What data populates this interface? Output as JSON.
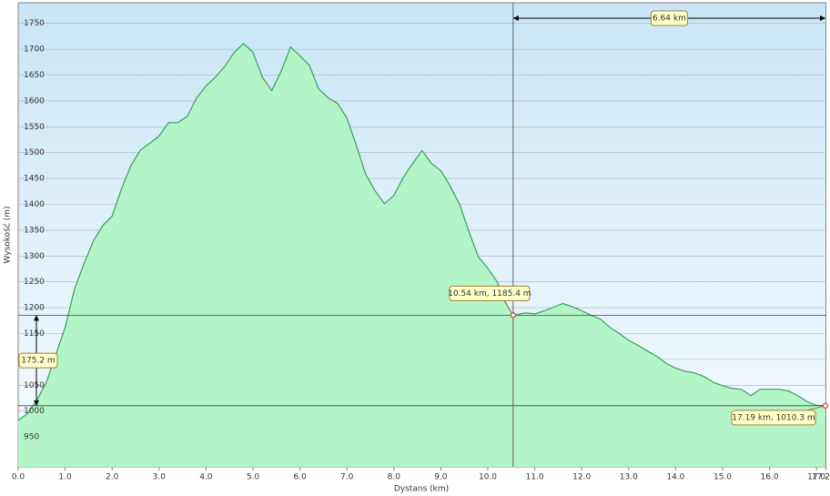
{
  "chart_data": {
    "type": "area",
    "x_label": "Dystans  (km)",
    "y_label": "Wysokość (m)",
    "x": [
      0.0,
      0.2,
      0.4,
      0.6,
      0.8,
      1.0,
      1.2,
      1.4,
      1.6,
      1.8,
      2.0,
      2.2,
      2.4,
      2.6,
      2.8,
      3.0,
      3.2,
      3.4,
      3.6,
      3.8,
      4.0,
      4.2,
      4.4,
      4.6,
      4.8,
      5.0,
      5.2,
      5.4,
      5.6,
      5.8,
      6.0,
      6.2,
      6.4,
      6.6,
      6.8,
      7.0,
      7.2,
      7.4,
      7.6,
      7.8,
      8.0,
      8.2,
      8.4,
      8.6,
      8.8,
      9.0,
      9.2,
      9.4,
      9.6,
      9.8,
      10.0,
      10.2,
      10.4,
      10.54,
      10.8,
      11.0,
      11.2,
      11.4,
      11.6,
      11.8,
      12.0,
      12.2,
      12.4,
      12.6,
      12.8,
      13.0,
      13.2,
      13.4,
      13.6,
      13.8,
      14.0,
      14.2,
      14.4,
      14.6,
      14.8,
      15.0,
      15.2,
      15.4,
      15.6,
      15.8,
      16.0,
      16.2,
      16.4,
      16.6,
      16.8,
      17.0,
      17.19
    ],
    "values": [
      982,
      995,
      1021,
      1056,
      1109,
      1162,
      1236,
      1285,
      1329,
      1359,
      1377,
      1430,
      1475,
      1505,
      1518,
      1532,
      1558,
      1558,
      1570,
      1606,
      1629,
      1646,
      1667,
      1694,
      1711,
      1694,
      1646,
      1620,
      1658,
      1704,
      1687,
      1669,
      1623,
      1606,
      1595,
      1567,
      1514,
      1458,
      1426,
      1401,
      1417,
      1452,
      1479,
      1504,
      1479,
      1465,
      1435,
      1400,
      1347,
      1298,
      1276,
      1250,
      1206,
      1185.4,
      1190,
      1188,
      1194,
      1201,
      1208,
      1202,
      1194,
      1185,
      1178,
      1162,
      1150,
      1137,
      1127,
      1116,
      1106,
      1092,
      1083,
      1077,
      1074,
      1067,
      1056,
      1049,
      1044,
      1042,
      1030,
      1042,
      1042,
      1042,
      1039,
      1030,
      1018,
      1011,
      1010.3
    ],
    "color": "#3c9c5c",
    "fill": "#b4f5c8",
    "xlim": [
      0,
      17.2
    ],
    "ylim": [
      892,
      1790
    ],
    "xticks": [
      {
        "value": 0,
        "label": "0.0"
      },
      {
        "value": 1,
        "label": "1.0"
      },
      {
        "value": 2,
        "label": "2.0"
      },
      {
        "value": 3,
        "label": "3.0"
      },
      {
        "value": 4,
        "label": "4.0"
      },
      {
        "value": 5,
        "label": "5.0"
      },
      {
        "value": 6,
        "label": "6.0"
      },
      {
        "value": 7,
        "label": "7.0"
      },
      {
        "value": 8,
        "label": "8.0"
      },
      {
        "value": 9,
        "label": "9.0"
      },
      {
        "value": 10,
        "label": "10.0"
      },
      {
        "value": 11,
        "label": "11.0"
      },
      {
        "value": 12,
        "label": "12.0"
      },
      {
        "value": 13,
        "label": "13.0"
      },
      {
        "value": 14,
        "label": "14.0"
      },
      {
        "value": 15,
        "label": "15.0"
      },
      {
        "value": 16,
        "label": "16.0"
      },
      {
        "value": 17,
        "label": "17.0"
      },
      17.2
    ],
    "yticks": [
      950,
      1000,
      1050,
      1100,
      1150,
      1200,
      1250,
      1300,
      1350,
      1400,
      1450,
      1500,
      1550,
      1600,
      1650,
      1700,
      1750
    ],
    "grid": true,
    "annotations": {
      "points": [
        {
          "x": 10.54,
          "y": 1185.4,
          "label": "10.54 km, 1185.4 m"
        },
        {
          "x": 17.19,
          "y": 1010.3,
          "label": "17.19 km, 1010.3 m"
        }
      ],
      "distance_label": "6.64 km",
      "height_label": "175.2 m"
    }
  }
}
